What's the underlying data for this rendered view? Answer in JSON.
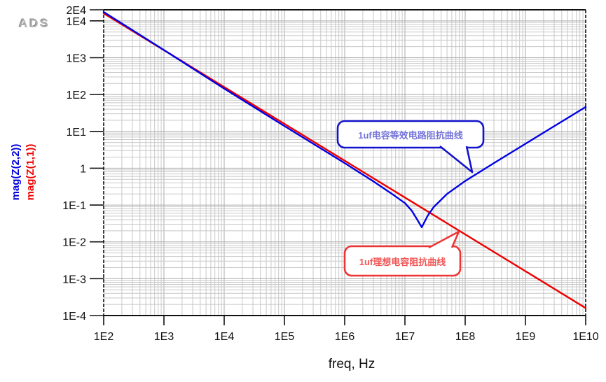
{
  "logo": "ADS",
  "colors": {
    "series1": "#0000e6",
    "series2": "#ee0000",
    "grid_minor": "#c8c8c8",
    "grid_major": "#aaaaaa",
    "axis": "#111111",
    "callout1_border": "#1313cd",
    "callout1_text": "#7472d8",
    "callout2_border": "#ee3535",
    "callout2_text": "#f25555"
  },
  "chart_data": {
    "type": "line",
    "x_axis": {
      "label": "freq, Hz",
      "scale": "log",
      "min": 100.0,
      "max": 10000000000.0,
      "ticks": [
        {
          "value": 100.0,
          "label": "1E2"
        },
        {
          "value": 1000.0,
          "label": "1E3"
        },
        {
          "value": 10000.0,
          "label": "1E4"
        },
        {
          "value": 100000.0,
          "label": "1E5"
        },
        {
          "value": 1000000.0,
          "label": "1E6"
        },
        {
          "value": 10000000.0,
          "label": "1E7"
        },
        {
          "value": 100000000.0,
          "label": "1E8"
        },
        {
          "value": 1000000000.0,
          "label": "1E9"
        },
        {
          "value": 10000000000.0,
          "label": "1E10"
        }
      ]
    },
    "y_axis": {
      "label": "",
      "scale": "log",
      "min": 0.0001,
      "max": 20000.0,
      "ticks": [
        {
          "value": 20000.0,
          "label": "2E4"
        },
        {
          "value": 10000.0,
          "label": "1E4"
        },
        {
          "value": 1000.0,
          "label": "1E3"
        },
        {
          "value": 100.0,
          "label": "1E2"
        },
        {
          "value": 10.0,
          "label": "1E1"
        },
        {
          "value": 1,
          "label": "1"
        },
        {
          "value": 0.1,
          "label": "1E-1"
        },
        {
          "value": 0.01,
          "label": "1E-2"
        },
        {
          "value": 0.001,
          "label": "1E-3"
        },
        {
          "value": 0.0001,
          "label": "1E-4"
        }
      ]
    },
    "grid": true,
    "series": [
      {
        "name": "mag(Z(2,2))",
        "color": "#0000e6",
        "description": "1uF capacitor equivalent circuit impedance (series RLC, resonance dip near 2E7 Hz)",
        "points": [
          [
            100.0,
            17500.0
          ],
          [
            1000.0,
            1620.0
          ],
          [
            10000.0,
            145.0
          ],
          [
            100000.0,
            14.0
          ],
          [
            1000000.0,
            1.38
          ],
          [
            3000000.0,
            0.44
          ],
          [
            6000000.0,
            0.205
          ],
          [
            10000000.0,
            0.113
          ],
          [
            13000000.0,
            0.07
          ],
          [
            16000000.0,
            0.04
          ],
          [
            19000000.0,
            0.025
          ],
          [
            24000000.0,
            0.052
          ],
          [
            30000000.0,
            0.088
          ],
          [
            50000000.0,
            0.2
          ],
          [
            100000000.0,
            0.45
          ],
          [
            300000000.0,
            1.38
          ],
          [
            1000000000.0,
            4.6
          ],
          [
            3000000000.0,
            13.8
          ],
          [
            10000000000.0,
            46
          ]
        ]
      },
      {
        "name": "mag(Z(1,1))",
        "color": "#ee0000",
        "description": "1uF ideal capacitor impedance, slope -1 straight line",
        "points": [
          [
            100.0,
            16000.0
          ],
          [
            1000.0,
            1600.0
          ],
          [
            10000.0,
            160.0
          ],
          [
            100000.0,
            16
          ],
          [
            1000000.0,
            1.6
          ],
          [
            10000000.0,
            0.16
          ],
          [
            100000000.0,
            0.016
          ],
          [
            1000000000.0,
            0.0016
          ],
          [
            10000000000.0,
            0.00016
          ]
        ]
      }
    ],
    "annotations": [
      {
        "text": "1uf电容等效电路阻抗曲线",
        "series": "mag(Z(2,2))"
      },
      {
        "text": "1uf理想电容阻抗曲线",
        "series": "mag(Z(1,1))"
      }
    ],
    "legend_position": "rotated-left-axis"
  }
}
